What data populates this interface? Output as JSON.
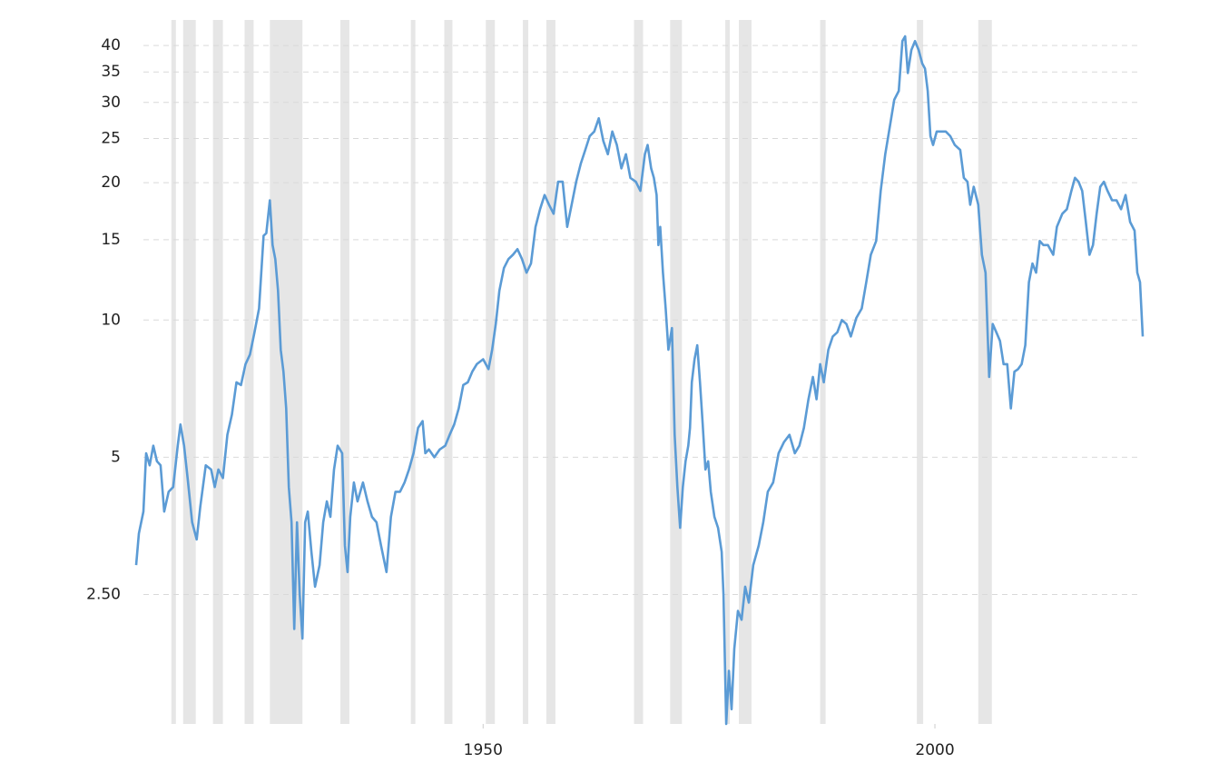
{
  "chart_data": {
    "type": "line",
    "color": "#5b9bd5",
    "band_color": "#e6e6e6",
    "log_scale": true,
    "grid": true,
    "xlim": [
      1911.6,
      2023.0
    ],
    "ylim": [
      1.3,
      45.5
    ],
    "xticks": [
      1950,
      2000
    ],
    "yticks": [
      40,
      35,
      30,
      25,
      20,
      15,
      10,
      5,
      {
        "value": 2.5,
        "label": "2.50"
      }
    ],
    "shaded_periods": [
      [
        1915.5,
        1916.0
      ],
      [
        1916.8,
        1918.2
      ],
      [
        1920.1,
        1921.2
      ],
      [
        1923.6,
        1924.6
      ],
      [
        1926.4,
        1930.0
      ],
      [
        1934.2,
        1935.2
      ],
      [
        1942.0,
        1942.5
      ],
      [
        1945.7,
        1946.6
      ],
      [
        1950.3,
        1951.3
      ],
      [
        1954.4,
        1955.0
      ],
      [
        1957.0,
        1958.0
      ],
      [
        1966.7,
        1967.7
      ],
      [
        1970.7,
        1972.0
      ],
      [
        1976.8,
        1977.3
      ],
      [
        1978.3,
        1979.7
      ],
      [
        1987.3,
        1987.9
      ],
      [
        1998.0,
        1998.7
      ],
      [
        2004.8,
        2006.3
      ]
    ],
    "x": [
      1911.6,
      1911.9,
      1912.4,
      1912.7,
      1913.1,
      1913.5,
      1913.9,
      1914.3,
      1914.7,
      1915.2,
      1915.7,
      1916.2,
      1916.5,
      1916.9,
      1917.3,
      1917.8,
      1918.3,
      1918.7,
      1919.3,
      1919.9,
      1920.3,
      1920.7,
      1921.2,
      1921.7,
      1922.2,
      1922.7,
      1923.2,
      1923.7,
      1924.2,
      1924.7,
      1925.2,
      1925.7,
      1926.0,
      1926.4,
      1926.7,
      1927.0,
      1927.3,
      1927.6,
      1927.9,
      1928.2,
      1928.5,
      1928.8,
      1929.1,
      1929.4,
      1929.7,
      1930.0,
      1930.3,
      1930.6,
      1931.0,
      1931.4,
      1931.9,
      1932.3,
      1932.7,
      1933.1,
      1933.5,
      1933.9,
      1934.4,
      1934.7,
      1935.0,
      1935.3,
      1935.7,
      1936.1,
      1936.7,
      1937.2,
      1937.7,
      1938.2,
      1938.7,
      1939.3,
      1939.8,
      1940.3,
      1940.8,
      1941.3,
      1941.8,
      1942.3,
      1942.8,
      1943.3,
      1943.6,
      1944.0,
      1944.6,
      1945.2,
      1945.8,
      1946.3,
      1946.8,
      1947.3,
      1947.8,
      1948.3,
      1948.8,
      1949.3,
      1950.0,
      1950.6,
      1951.0,
      1951.4,
      1951.8,
      1952.3,
      1952.8,
      1953.3,
      1953.8,
      1954.3,
      1954.8,
      1955.3,
      1955.8,
      1956.3,
      1956.8,
      1957.3,
      1957.8,
      1958.3,
      1958.8,
      1959.3,
      1959.8,
      1960.3,
      1960.8,
      1961.3,
      1961.8,
      1962.3,
      1962.8,
      1963.3,
      1963.8,
      1964.3,
      1964.8,
      1965.3,
      1965.8,
      1966.3,
      1966.9,
      1967.4,
      1967.9,
      1968.2,
      1968.6,
      1968.9,
      1969.2,
      1969.4,
      1969.6,
      1969.9,
      1970.2,
      1970.5,
      1970.9,
      1971.2,
      1971.5,
      1971.8,
      1972.1,
      1972.4,
      1972.7,
      1972.9,
      1973.1,
      1973.4,
      1973.7,
      1974.0,
      1974.3,
      1974.6,
      1974.9,
      1975.2,
      1975.6,
      1976.0,
      1976.4,
      1976.6,
      1976.9,
      1977.2,
      1977.5,
      1977.8,
      1978.2,
      1978.6,
      1979.0,
      1979.4,
      1979.9,
      1980.5,
      1981.0,
      1981.5,
      1982.1,
      1982.7,
      1983.3,
      1983.9,
      1984.5,
      1985.0,
      1985.5,
      1986.0,
      1986.5,
      1986.9,
      1987.3,
      1987.7,
      1988.2,
      1988.7,
      1989.2,
      1989.7,
      1990.2,
      1990.7,
      1991.3,
      1991.9,
      1992.4,
      1992.9,
      1993.5,
      1994.0,
      1994.5,
      1995.0,
      1995.5,
      1996.0,
      1996.4,
      1996.7,
      1997.0,
      1997.4,
      1997.8,
      1998.2,
      1998.6,
      1998.9,
      1999.2,
      1999.5,
      1999.8,
      2000.2,
      2000.7,
      2001.2,
      2001.7,
      2002.2,
      2002.8,
      2003.2,
      2003.6,
      2003.9,
      2004.3,
      2004.8,
      2005.2,
      2005.6,
      2006.0,
      2006.4,
      2006.8,
      2007.2,
      2007.6,
      2008.0,
      2008.4,
      2008.8,
      2009.2,
      2009.6,
      2010.0,
      2010.4,
      2010.8,
      2011.2,
      2011.6,
      2012.0,
      2012.5,
      2013.1,
      2013.5,
      2014.1,
      2014.6,
      2015.1,
      2015.5,
      2015.9,
      2016.3,
      2016.7,
      2017.1,
      2017.5,
      2017.9,
      2018.3,
      2018.7,
      2019.1,
      2019.6,
      2020.1,
      2020.6,
      2021.1,
      2021.6,
      2022.1,
      2022.4,
      2022.7,
      2023.0
    ],
    "values": [
      2.9,
      3.4,
      3.8,
      5.1,
      4.8,
      5.3,
      4.9,
      4.8,
      3.8,
      4.2,
      4.3,
      5.3,
      5.9,
      5.3,
      4.5,
      3.6,
      3.3,
      3.9,
      4.8,
      4.7,
      4.3,
      4.7,
      4.5,
      5.6,
      6.2,
      7.3,
      7.2,
      8.0,
      8.4,
      9.4,
      10.6,
      15.3,
      15.5,
      18.3,
      14.6,
      13.6,
      11.6,
      8.6,
      7.7,
      6.4,
      4.3,
      3.6,
      2.1,
      3.6,
      2.5,
      2.0,
      3.6,
      3.8,
      3.1,
      2.6,
      2.9,
      3.6,
      4.0,
      3.7,
      4.7,
      5.3,
      5.1,
      3.2,
      2.8,
      3.7,
      4.4,
      4.0,
      4.4,
      4.0,
      3.7,
      3.6,
      3.2,
      2.8,
      3.7,
      4.2,
      4.2,
      4.4,
      4.7,
      5.1,
      5.8,
      6.0,
      5.1,
      5.2,
      5.0,
      5.2,
      5.3,
      5.6,
      5.9,
      6.4,
      7.2,
      7.3,
      7.7,
      8.0,
      8.2,
      7.8,
      8.6,
      9.8,
      11.6,
      13.0,
      13.6,
      13.9,
      14.3,
      13.6,
      12.7,
      13.3,
      16.0,
      17.5,
      18.8,
      17.9,
      17.1,
      20.1,
      20.1,
      16.0,
      17.9,
      20.1,
      22.0,
      23.6,
      25.3,
      25.9,
      27.7,
      24.7,
      23.1,
      25.9,
      24.2,
      21.5,
      23.1,
      20.5,
      20.1,
      19.2,
      23.1,
      24.2,
      21.5,
      20.5,
      18.8,
      14.6,
      16.0,
      12.7,
      10.6,
      8.6,
      9.6,
      5.6,
      4.3,
      3.5,
      4.3,
      4.9,
      5.3,
      5.8,
      7.3,
      8.2,
      8.8,
      7.3,
      5.9,
      4.7,
      4.9,
      4.2,
      3.7,
      3.5,
      3.1,
      2.5,
      1.3,
      1.7,
      1.4,
      1.9,
      2.3,
      2.2,
      2.6,
      2.4,
      2.9,
      3.2,
      3.6,
      4.2,
      4.4,
      5.1,
      5.4,
      5.6,
      5.1,
      5.3,
      5.8,
      6.7,
      7.5,
      6.7,
      8.0,
      7.3,
      8.6,
      9.2,
      9.4,
      10.0,
      9.8,
      9.2,
      10.1,
      10.6,
      12.1,
      13.9,
      14.9,
      19.2,
      23.1,
      26.5,
      30.4,
      31.8,
      40.9,
      41.9,
      34.8,
      39.1,
      40.9,
      39.1,
      36.5,
      35.6,
      31.8,
      25.3,
      24.2,
      25.9,
      25.9,
      25.9,
      25.3,
      24.2,
      23.6,
      20.5,
      20.1,
      17.9,
      19.6,
      17.9,
      13.9,
      12.7,
      7.5,
      9.8,
      9.4,
      9.0,
      8.0,
      8.0,
      6.4,
      7.7,
      7.8,
      8.0,
      8.8,
      12.1,
      13.3,
      12.7,
      14.9,
      14.6,
      14.6,
      13.9,
      16.0,
      17.1,
      17.5,
      19.2,
      20.5,
      20.1,
      19.2,
      16.4,
      13.9,
      14.6,
      17.1,
      19.6,
      20.1,
      19.2,
      18.3,
      18.3,
      17.5,
      18.8,
      16.4,
      15.7,
      12.7,
      12.1,
      9.2
    ]
  }
}
